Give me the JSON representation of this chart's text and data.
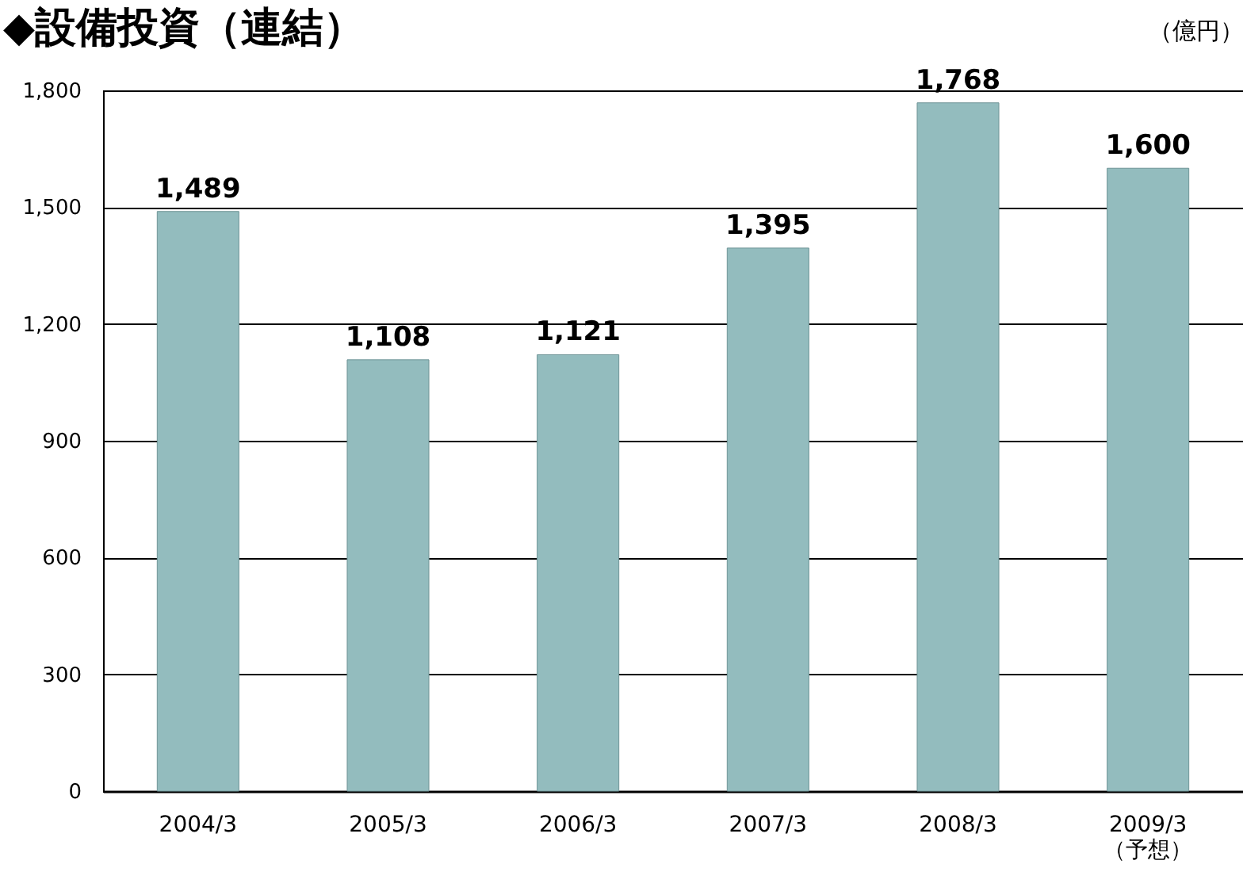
{
  "chart_data": {
    "type": "bar",
    "title": "◆設備投資（連結）",
    "ylabel": "（億円）",
    "categories": [
      "2004/3",
      "2005/3",
      "2006/3",
      "2007/3",
      "2008/3",
      "2009/3\n（予想）"
    ],
    "values": [
      1489,
      1108,
      1121,
      1395,
      1768,
      1600
    ],
    "color": "#93bcbe",
    "value_labels": [
      "1,489",
      "1,108",
      "1,121",
      "1,395",
      "1,768",
      "1,600"
    ],
    "ylim": [
      0,
      1800
    ],
    "yticks": [
      0,
      {
        "value": 300,
        "label": "300"
      },
      {
        "value": 600,
        "label": "600"
      },
      {
        "value": 900,
        "label": "900"
      },
      {
        "value": 1200,
        "label": "1,200"
      },
      {
        "value": 1500,
        "label": "1,500"
      },
      {
        "value": 1800,
        "label": "1,800"
      }
    ],
    "grid": "y"
  }
}
